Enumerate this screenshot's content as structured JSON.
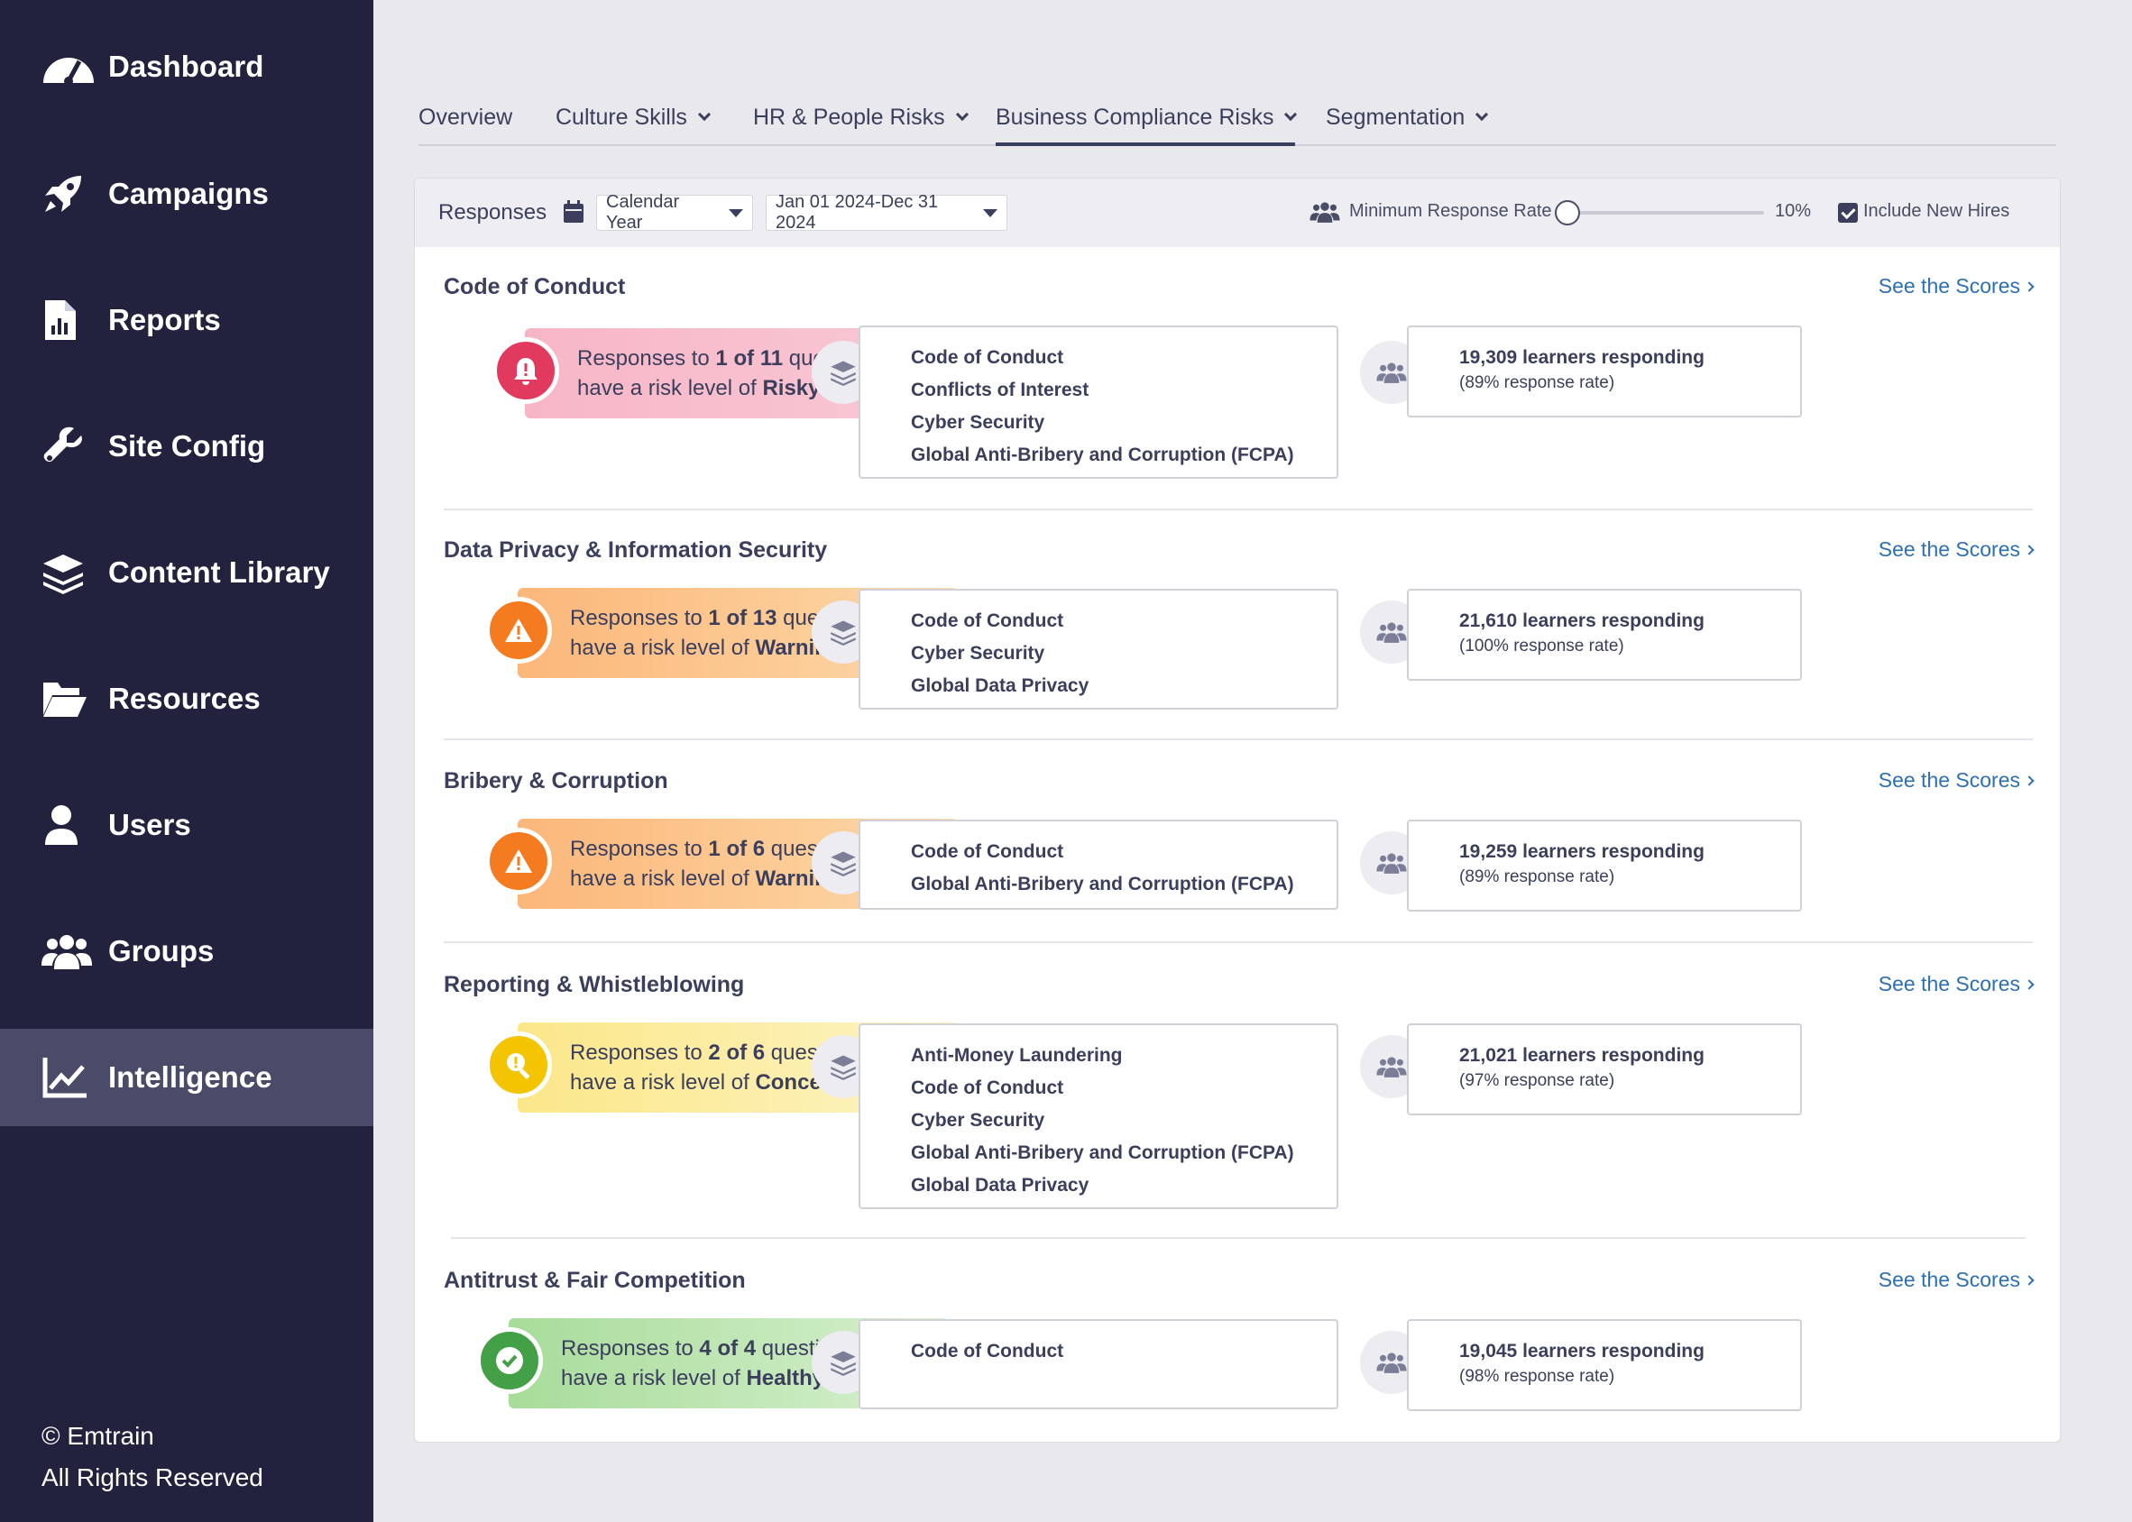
{
  "sidebar": {
    "items": [
      {
        "label": "Dashboard",
        "icon": "dashboard-gauge-icon"
      },
      {
        "label": "Campaigns",
        "icon": "rocket-icon"
      },
      {
        "label": "Reports",
        "icon": "report-file-icon"
      },
      {
        "label": "Site Config",
        "icon": "wrench-icon"
      },
      {
        "label": "Content Library",
        "icon": "layers-icon"
      },
      {
        "label": "Resources",
        "icon": "folder-open-icon"
      },
      {
        "label": "Users",
        "icon": "user-icon"
      },
      {
        "label": "Groups",
        "icon": "users-group-icon"
      },
      {
        "label": "Intelligence",
        "icon": "chart-line-icon",
        "active": true
      }
    ],
    "copyright_line1": "© Emtrain",
    "copyright_line2": "All Rights Reserved"
  },
  "tabs": [
    {
      "label": "Overview",
      "dropdown": false
    },
    {
      "label": "Culture Skills",
      "dropdown": true
    },
    {
      "label": "HR & People Risks",
      "dropdown": true
    },
    {
      "label": "Business Compliance Risks",
      "dropdown": true,
      "active": true
    },
    {
      "label": "Segmentation",
      "dropdown": true
    }
  ],
  "filters": {
    "label": "Responses",
    "period_select": "Calendar Year",
    "date_range_select": "Jan 01 2024-Dec 31 2024",
    "min_response_label": "Minimum Response Rate",
    "min_response_value": "10%",
    "include_new_hires_label": "Include New Hires",
    "include_new_hires_checked": true
  },
  "colors": {
    "sidebar_bg": "#22223f",
    "link": "#2d6fb3",
    "risky": "#e23a5e",
    "warning": "#f47b20",
    "concerning": "#f5c400",
    "healthy": "#43a047"
  },
  "see_scores_label": "See the Scores",
  "sections": [
    {
      "title": "Code of Conduct",
      "risk_prefix": "Responses to ",
      "risk_count": "1 of 11",
      "risk_suffix": " questions",
      "risk_line2": "have a risk level of ",
      "risk_level": "Risky",
      "courses": [
        "Code of Conduct",
        "Conflicts of Interest",
        "Cyber Security",
        "Global Anti-Bribery and Corruption (FCPA)"
      ],
      "learners": "19,309 learners responding",
      "rate": "(89% response rate)"
    },
    {
      "title": "Data Privacy & Information Security",
      "risk_prefix": "Responses to ",
      "risk_count": "1 of 13",
      "risk_suffix": " questions",
      "risk_line2": "have a risk level of ",
      "risk_level": "Warning",
      "courses": [
        "Code of Conduct",
        "Cyber Security",
        "Global Data Privacy"
      ],
      "learners": "21,610 learners responding",
      "rate": "(100% response rate)"
    },
    {
      "title": "Bribery & Corruption",
      "risk_prefix": "Responses to ",
      "risk_count": "1 of 6",
      "risk_suffix": " questions",
      "risk_line2": "have a risk level of ",
      "risk_level": "Warning",
      "courses": [
        "Code of Conduct",
        "Global Anti-Bribery and Corruption (FCPA)"
      ],
      "learners": "19,259 learners responding",
      "rate": "(89% response rate)"
    },
    {
      "title": "Reporting & Whistleblowing",
      "risk_prefix": "Responses to ",
      "risk_count": "2 of 6",
      "risk_suffix": " questions",
      "risk_line2": "have a risk level of ",
      "risk_level": "Concerning",
      "courses": [
        "Anti-Money Laundering",
        "Code of Conduct",
        "Cyber Security",
        "Global Anti-Bribery and Corruption (FCPA)",
        "Global Data Privacy"
      ],
      "learners": "21,021 learners responding",
      "rate": "(97% response rate)"
    },
    {
      "title": "Antitrust & Fair Competition",
      "risk_prefix": "Responses to ",
      "risk_count": "4 of 4",
      "risk_suffix": " questions",
      "risk_line2": "have a risk level of ",
      "risk_level": "Healthy",
      "courses": [
        "Code of Conduct"
      ],
      "learners": "19,045 learners responding",
      "rate": "(98% response rate)"
    }
  ]
}
